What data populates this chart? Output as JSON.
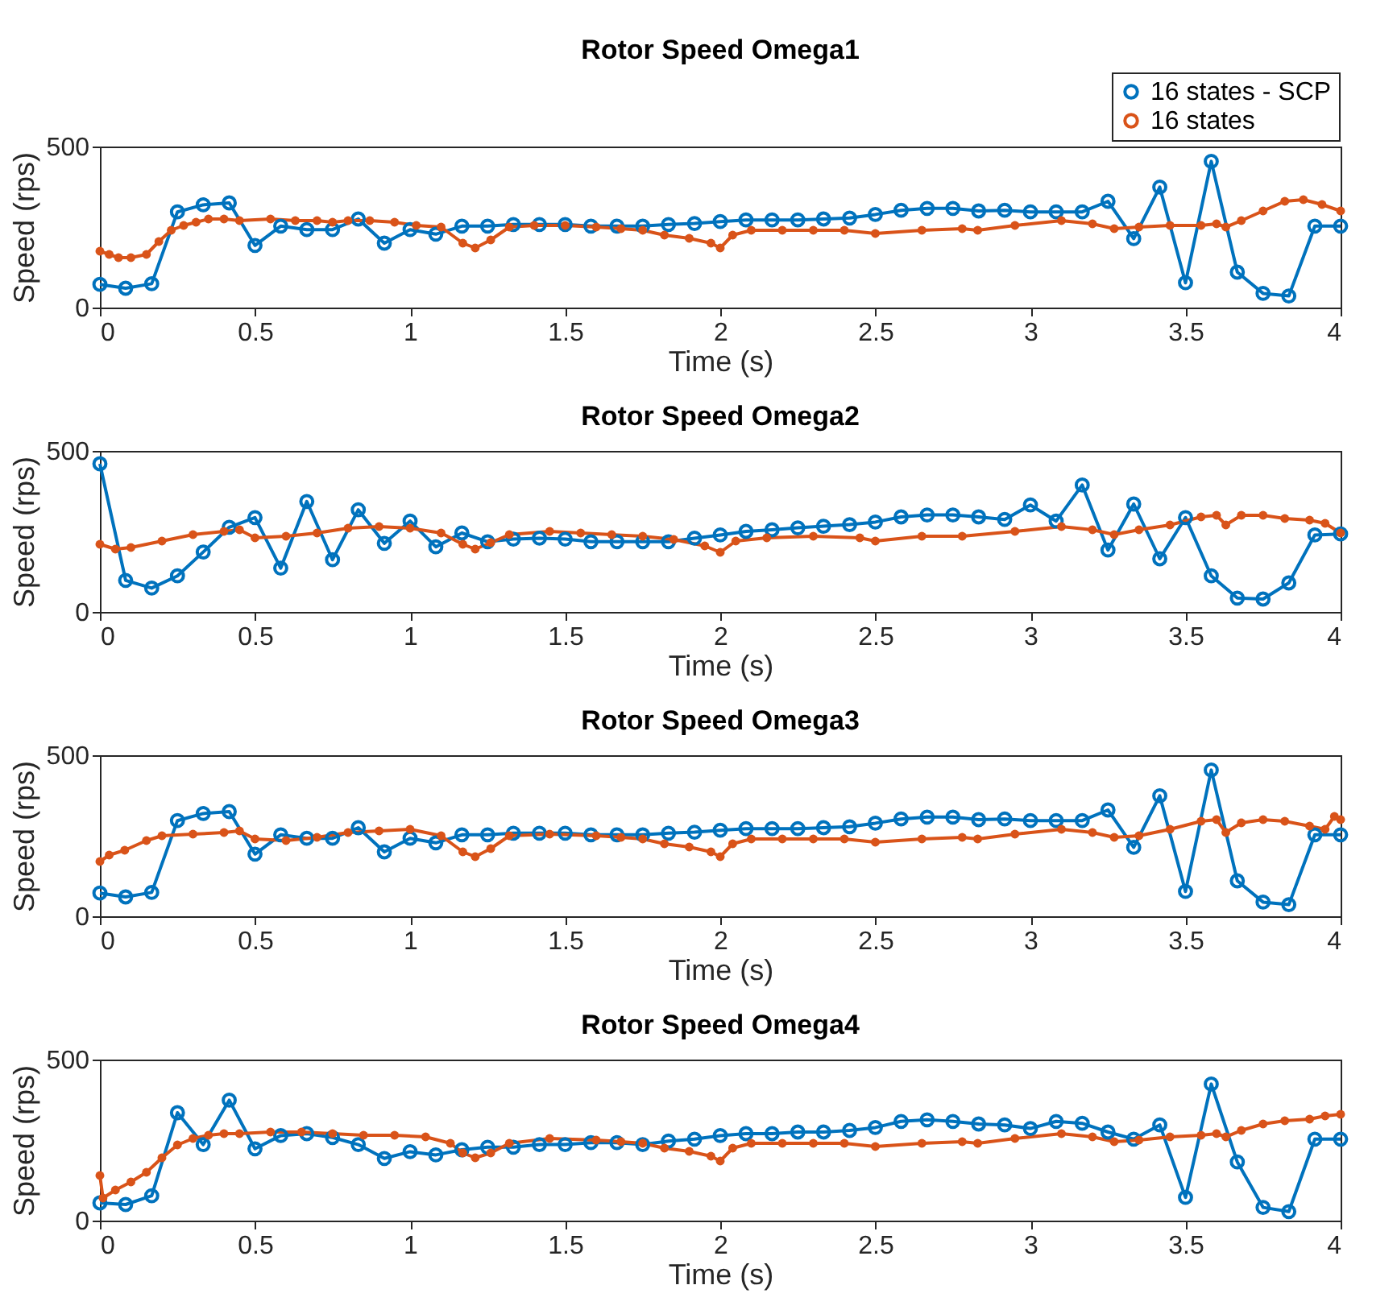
{
  "chart_data": [
    {
      "type": "line",
      "title": "Rotor Speed Omega1",
      "xlabel": "Time (s)",
      "ylabel": "Speed (rps)",
      "xlim": [
        0,
        4
      ],
      "ylim": [
        0,
        500
      ],
      "xticks": [
        0,
        0.5,
        1,
        1.5,
        2,
        2.5,
        3,
        3.5,
        4
      ],
      "yticks": [
        0,
        500
      ],
      "grid": false,
      "legend": "top right",
      "line_style": "solid",
      "series": [
        {
          "name": "16 states - SCP",
          "color": "#0072bd",
          "marker": "circle",
          "x": [
            0,
            0.083,
            0.167,
            0.25,
            0.333,
            0.417,
            0.5,
            0.583,
            0.667,
            0.75,
            0.833,
            0.917,
            1.0,
            1.083,
            1.167,
            1.25,
            1.333,
            1.417,
            1.5,
            1.583,
            1.667,
            1.75,
            1.833,
            1.917,
            2.0,
            2.083,
            2.167,
            2.25,
            2.333,
            2.417,
            2.5,
            2.583,
            2.667,
            2.75,
            2.833,
            2.917,
            3.0,
            3.083,
            3.167,
            3.25,
            3.333,
            3.417,
            3.5,
            3.583,
            3.667,
            3.75,
            3.833,
            3.917,
            4.0
          ],
          "values": [
            72,
            60,
            74,
            297,
            319,
            325,
            193,
            253,
            242,
            242,
            275,
            200,
            242,
            228,
            253,
            253,
            258,
            258,
            258,
            253,
            253,
            253,
            258,
            261,
            267,
            272,
            272,
            272,
            275,
            278,
            289,
            302,
            308,
            308,
            300,
            302,
            297,
            297,
            297,
            330,
            214,
            374,
            77,
            454,
            110,
            44,
            36,
            253,
            253
          ]
        },
        {
          "name": "16 states",
          "color": "#d95319",
          "marker": "circle",
          "x": [
            0,
            0.03,
            0.06,
            0.1,
            0.15,
            0.19,
            0.23,
            0.27,
            0.31,
            0.35,
            0.4,
            0.45,
            0.55,
            0.63,
            0.7,
            0.75,
            0.8,
            0.87,
            0.95,
            1.02,
            1.1,
            1.17,
            1.21,
            1.26,
            1.32,
            1.4,
            1.5,
            1.6,
            1.68,
            1.75,
            1.82,
            1.9,
            1.97,
            2.0,
            2.04,
            2.1,
            2.2,
            2.3,
            2.4,
            2.5,
            2.65,
            2.78,
            2.83,
            2.95,
            3.1,
            3.2,
            3.27,
            3.35,
            3.45,
            3.55,
            3.6,
            3.63,
            3.68,
            3.75,
            3.82,
            3.88,
            3.94,
            4.0
          ],
          "values": [
            175,
            165,
            155,
            155,
            165,
            205,
            240,
            255,
            265,
            275,
            275,
            270,
            275,
            270,
            270,
            265,
            270,
            270,
            265,
            255,
            250,
            200,
            185,
            210,
            250,
            255,
            255,
            250,
            245,
            240,
            225,
            215,
            200,
            185,
            225,
            240,
            240,
            240,
            240,
            230,
            240,
            245,
            240,
            255,
            270,
            260,
            245,
            250,
            255,
            255,
            260,
            250,
            270,
            300,
            330,
            335,
            320,
            300
          ]
        }
      ]
    },
    {
      "type": "line",
      "title": "Rotor Speed Omega2",
      "xlabel": "Time (s)",
      "ylabel": "Speed (rps)",
      "xlim": [
        0,
        4
      ],
      "ylim": [
        0,
        500
      ],
      "xticks": [
        0,
        0.5,
        1,
        1.5,
        2,
        2.5,
        3,
        3.5,
        4
      ],
      "yticks": [
        0,
        500
      ],
      "grid": false,
      "line_style": "solid",
      "series": [
        {
          "color": "#0072bd",
          "marker": "circle",
          "x": [
            0,
            0.083,
            0.167,
            0.25,
            0.333,
            0.417,
            0.5,
            0.583,
            0.667,
            0.75,
            0.833,
            0.917,
            1.0,
            1.083,
            1.167,
            1.25,
            1.333,
            1.417,
            1.5,
            1.583,
            1.667,
            1.75,
            1.833,
            1.917,
            2.0,
            2.083,
            2.167,
            2.25,
            2.333,
            2.417,
            2.5,
            2.583,
            2.667,
            2.75,
            2.833,
            2.917,
            3.0,
            3.083,
            3.167,
            3.25,
            3.333,
            3.417,
            3.5,
            3.583,
            3.667,
            3.75,
            3.833,
            3.917,
            4.0
          ],
          "values": [
            460,
            98,
            74,
            112,
            186,
            263,
            293,
            136,
            343,
            162,
            317,
            213,
            282,
            202,
            245,
            218,
            226,
            229,
            226,
            218,
            218,
            218,
            218,
            229,
            239,
            250,
            255,
            261,
            266,
            271,
            279,
            295,
            301,
            301,
            295,
            287,
            332,
            282,
            394,
            192,
            335,
            165,
            293,
            112,
            43,
            40,
            90,
            239,
            242
          ]
        },
        {
          "color": "#d95319",
          "marker": "circle",
          "x": [
            0,
            0.05,
            0.1,
            0.2,
            0.3,
            0.4,
            0.45,
            0.5,
            0.6,
            0.7,
            0.8,
            0.9,
            1.0,
            1.1,
            1.17,
            1.21,
            1.26,
            1.32,
            1.45,
            1.55,
            1.65,
            1.75,
            1.85,
            1.95,
            2.0,
            2.05,
            2.15,
            2.3,
            2.45,
            2.5,
            2.65,
            2.78,
            2.95,
            3.1,
            3.2,
            3.27,
            3.35,
            3.45,
            3.55,
            3.6,
            3.63,
            3.68,
            3.75,
            3.82,
            3.9,
            3.95,
            4.0
          ],
          "values": [
            210,
            195,
            200,
            220,
            240,
            250,
            255,
            230,
            235,
            245,
            260,
            265,
            260,
            245,
            210,
            195,
            215,
            240,
            250,
            245,
            240,
            235,
            225,
            205,
            185,
            220,
            230,
            235,
            230,
            220,
            235,
            235,
            250,
            265,
            255,
            240,
            255,
            270,
            295,
            300,
            270,
            300,
            300,
            290,
            285,
            275,
            245
          ]
        }
      ]
    },
    {
      "type": "line",
      "title": "Rotor Speed Omega3",
      "xlabel": "Time (s)",
      "ylabel": "Speed (rps)",
      "xlim": [
        0,
        4
      ],
      "ylim": [
        0,
        500
      ],
      "xticks": [
        0,
        0.5,
        1,
        1.5,
        2,
        2.5,
        3,
        3.5,
        4
      ],
      "yticks": [
        0,
        500
      ],
      "grid": false,
      "line_style": "solid",
      "series": [
        {
          "color": "#0072bd",
          "marker": "circle",
          "x": [
            0,
            0.083,
            0.167,
            0.25,
            0.333,
            0.417,
            0.5,
            0.583,
            0.667,
            0.75,
            0.833,
            0.917,
            1.0,
            1.083,
            1.167,
            1.25,
            1.333,
            1.417,
            1.5,
            1.583,
            1.667,
            1.75,
            1.833,
            1.917,
            2.0,
            2.083,
            2.167,
            2.25,
            2.333,
            2.417,
            2.5,
            2.583,
            2.667,
            2.75,
            2.833,
            2.917,
            3.0,
            3.083,
            3.167,
            3.25,
            3.333,
            3.417,
            3.5,
            3.583,
            3.667,
            3.75,
            3.833,
            3.917,
            4.0
          ],
          "values": [
            72,
            60,
            74,
            297,
            319,
            325,
            193,
            253,
            242,
            242,
            275,
            200,
            242,
            228,
            253,
            253,
            258,
            258,
            258,
            253,
            253,
            253,
            258,
            261,
            267,
            272,
            272,
            272,
            275,
            278,
            289,
            302,
            308,
            308,
            300,
            302,
            297,
            297,
            297,
            330,
            214,
            374,
            77,
            454,
            110,
            44,
            36,
            253,
            253
          ]
        },
        {
          "color": "#d95319",
          "marker": "circle",
          "x": [
            0,
            0.03,
            0.08,
            0.15,
            0.2,
            0.3,
            0.4,
            0.45,
            0.5,
            0.6,
            0.7,
            0.8,
            0.9,
            1.0,
            1.1,
            1.17,
            1.21,
            1.26,
            1.32,
            1.45,
            1.6,
            1.68,
            1.75,
            1.82,
            1.9,
            1.97,
            2.0,
            2.04,
            2.1,
            2.2,
            2.3,
            2.4,
            2.5,
            2.65,
            2.78,
            2.83,
            2.95,
            3.1,
            3.2,
            3.27,
            3.35,
            3.45,
            3.55,
            3.6,
            3.63,
            3.68,
            3.75,
            3.82,
            3.9,
            3.95,
            3.98,
            4.0
          ],
          "values": [
            170,
            190,
            205,
            235,
            250,
            255,
            260,
            265,
            240,
            235,
            245,
            260,
            265,
            270,
            250,
            200,
            185,
            210,
            250,
            255,
            250,
            245,
            240,
            225,
            215,
            200,
            185,
            225,
            240,
            240,
            240,
            240,
            230,
            240,
            245,
            240,
            255,
            270,
            260,
            245,
            250,
            270,
            295,
            300,
            260,
            290,
            300,
            295,
            280,
            270,
            310,
            300
          ]
        }
      ]
    },
    {
      "type": "line",
      "title": "Rotor Speed Omega4",
      "xlabel": "Time (s)",
      "ylabel": "Speed (rps)",
      "xlim": [
        0,
        4
      ],
      "ylim": [
        0,
        500
      ],
      "xticks": [
        0,
        0.5,
        1,
        1.5,
        2,
        2.5,
        3,
        3.5,
        4
      ],
      "yticks": [
        0,
        500
      ],
      "grid": false,
      "line_style": "solid",
      "series": [
        {
          "color": "#0072bd",
          "marker": "circle",
          "x": [
            0,
            0.083,
            0.167,
            0.25,
            0.333,
            0.417,
            0.5,
            0.583,
            0.667,
            0.75,
            0.833,
            0.917,
            1.0,
            1.083,
            1.167,
            1.25,
            1.333,
            1.417,
            1.5,
            1.583,
            1.667,
            1.75,
            1.833,
            1.917,
            2.0,
            2.083,
            2.167,
            2.25,
            2.333,
            2.417,
            2.5,
            2.583,
            2.667,
            2.75,
            2.833,
            2.917,
            3.0,
            3.083,
            3.167,
            3.25,
            3.333,
            3.417,
            3.5,
            3.583,
            3.667,
            3.75,
            3.833,
            3.917,
            4.0
          ],
          "values": [
            55,
            50,
            77,
            335,
            236,
            374,
            223,
            264,
            270,
            258,
            236,
            193,
            214,
            204,
            220,
            228,
            228,
            236,
            236,
            242,
            242,
            236,
            247,
            253,
            264,
            270,
            270,
            275,
            275,
            280,
            289,
            308,
            313,
            308,
            300,
            297,
            286,
            308,
            302,
            275,
            253,
            297,
            72,
            424,
            182,
            41,
            28,
            253,
            253
          ]
        },
        {
          "color": "#d95319",
          "marker": "circle",
          "x": [
            0,
            0.01,
            0.05,
            0.1,
            0.15,
            0.2,
            0.25,
            0.3,
            0.35,
            0.4,
            0.45,
            0.55,
            0.65,
            0.75,
            0.85,
            0.95,
            1.05,
            1.13,
            1.17,
            1.21,
            1.26,
            1.32,
            1.45,
            1.6,
            1.68,
            1.75,
            1.82,
            1.9,
            1.97,
            2.0,
            2.04,
            2.1,
            2.2,
            2.3,
            2.4,
            2.5,
            2.65,
            2.78,
            2.83,
            2.95,
            3.1,
            3.2,
            3.27,
            3.35,
            3.45,
            3.55,
            3.6,
            3.63,
            3.68,
            3.75,
            3.82,
            3.9,
            3.95,
            4.0
          ],
          "values": [
            140,
            70,
            95,
            120,
            150,
            195,
            235,
            255,
            265,
            270,
            270,
            275,
            275,
            270,
            265,
            265,
            260,
            240,
            210,
            195,
            210,
            240,
            255,
            250,
            245,
            240,
            225,
            215,
            200,
            185,
            225,
            240,
            240,
            240,
            240,
            230,
            240,
            245,
            240,
            255,
            270,
            260,
            245,
            250,
            260,
            265,
            270,
            260,
            280,
            300,
            310,
            315,
            325,
            330
          ]
        }
      ]
    }
  ]
}
